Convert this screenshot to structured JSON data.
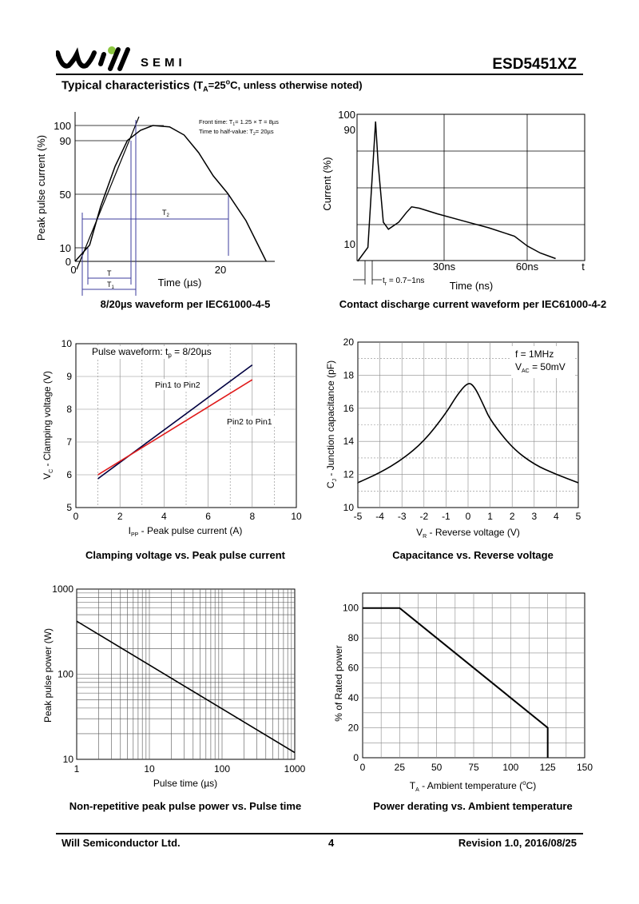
{
  "header": {
    "logo_text": "SEMI",
    "part_number": "ESD5451XZ",
    "section_title": "Typical characteristics",
    "section_condition_pre": "(T",
    "section_condition_sub": "A",
    "section_condition_post": "=25",
    "section_condition_sup": "o",
    "section_condition_end": "C, unless otherwise noted)"
  },
  "charts": {
    "waveform_8_20": {
      "caption": "8/20µs waveform per IEC61000-4-5",
      "ylabel": "Peak pulse current (%)",
      "xlabel": "Time (µs)",
      "yticks": [
        "100",
        "90",
        "50",
        "10",
        "0"
      ],
      "xticks": [
        "0",
        "20"
      ],
      "note1_pre": "Front time: T",
      "note1_sub": "1",
      "note1_post": "= 1.25 × T = 8µs",
      "note2_pre": "Time to half-value: T",
      "note2_sub": "2",
      "note2_post": "= 20µs",
      "label_T": "T",
      "label_T1": "T",
      "label_T1_sub": "1",
      "label_T2": "T",
      "label_T2_sub": "2"
    },
    "contact_discharge": {
      "caption": "Contact discharge current waveform per IEC61000-4-2",
      "ylabel": "Current (%)",
      "xlabel": "Time (ns)",
      "yticks": [
        "100",
        "90",
        "10"
      ],
      "xticks": [
        "30ns",
        "60ns",
        "t"
      ],
      "tr_pre": "t",
      "tr_sub": "r",
      "tr_post": " = 0.7~1ns"
    },
    "clamping": {
      "caption": "Clamping voltage vs. Peak pulse current",
      "legend_title_pre": "Pulse waveform: t",
      "legend_title_sub": "p",
      "legend_title_post": " = 8/20µs",
      "ylabel_pre": "V",
      "ylabel_sub": "C",
      "ylabel_post": " - Clamping voltage (V)",
      "xlabel_pre": "I",
      "xlabel_sub": "PP",
      "xlabel_post": " - Peak pulse current (A)",
      "colors": {
        "pin1_to_pin2": "#000040",
        "pin2_to_pin1": "#e01a1a"
      }
    },
    "capacitance": {
      "caption": "Capacitance vs. Reverse voltage",
      "legend_f": "f = 1MHz",
      "legend_v_pre": "V",
      "legend_v_sub": "AC",
      "legend_v_post": " = 50mV",
      "ylabel_pre": "C",
      "ylabel_sub": "J",
      "ylabel_post": " - Junction capacitance (pF)",
      "xlabel_pre": "V",
      "xlabel_sub": "R",
      "xlabel_post": " - Reverse voltage (V)"
    },
    "pulse_power": {
      "caption": "Non-repetitive peak pulse power vs. Pulse time",
      "ylabel": "Peak pulse power (W)",
      "xlabel": "Pulse time (µs)"
    },
    "derating": {
      "caption": "Power derating vs. Ambient temperature",
      "ylabel": "% of Rated power",
      "xlabel_pre": "T",
      "xlabel_sub": "A",
      "xlabel_post": " - Ambient temperature (",
      "xlabel_sup": "o",
      "xlabel_end": "C)"
    }
  },
  "chart_data": [
    {
      "type": "line",
      "title": "8/20µs waveform per IEC61000-4-5",
      "xlabel": "Time (µs)",
      "ylabel": "Peak pulse current (%)",
      "x_ticks": [
        0,
        20
      ],
      "y_ticks": [
        0,
        10,
        50,
        90,
        100
      ],
      "xlim": [
        -0.5,
        27
      ],
      "ylim": [
        -2,
        105
      ],
      "series": [
        {
          "values": [
            [
              0,
              0
            ],
            [
              2,
              12
            ],
            [
              3.5,
              40
            ],
            [
              5.5,
              70
            ],
            [
              7.2,
              89
            ],
            [
              9,
              96.5
            ],
            [
              10.7,
              100
            ],
            [
              13,
              99
            ],
            [
              15,
              93
            ],
            [
              17,
              80
            ],
            [
              19,
              63
            ],
            [
              21,
              50
            ],
            [
              23.5,
              30
            ],
            [
              26.3,
              0
            ]
          ]
        }
      ]
    },
    {
      "type": "line",
      "title": "Contact discharge current waveform per IEC61000-4-2",
      "xlabel": "Time (ns)",
      "ylabel": "Current (%)",
      "x_ticks": [
        30,
        60
      ],
      "y_ticks": [
        10,
        90,
        100
      ],
      "series": [
        {
          "values": [
            [
              -6,
              0
            ],
            [
              -2,
              10
            ],
            [
              0,
              70
            ],
            [
              1,
              100
            ],
            [
              2,
              70
            ],
            [
              4,
              28
            ],
            [
              6,
              23
            ],
            [
              10,
              28
            ],
            [
              13,
              35
            ],
            [
              15,
              39
            ],
            [
              18,
              38
            ],
            [
              25,
              34
            ],
            [
              35,
              29
            ],
            [
              45,
              24
            ],
            [
              55,
              18
            ],
            [
              60,
              11
            ],
            [
              65,
              6
            ],
            [
              71,
              2
            ]
          ]
        }
      ]
    },
    {
      "type": "line",
      "title": "Clamping voltage vs. Peak pulse current",
      "xlabel": "I_PP - Peak pulse current (A)",
      "ylabel": "V_C - Clamping voltage (V)",
      "xlim": [
        0,
        10
      ],
      "ylim": [
        5,
        10
      ],
      "series": [
        {
          "name": "Pin1 to Pin2",
          "values": [
            [
              1,
              5.88
            ],
            [
              8,
              9.35
            ]
          ]
        },
        {
          "name": "Pin2 to Pin1",
          "values": [
            [
              1,
              6.0
            ],
            [
              8,
              8.9
            ]
          ]
        }
      ]
    },
    {
      "type": "line",
      "title": "Capacitance vs. Reverse voltage",
      "xlabel": "V_R - Reverse voltage (V)",
      "ylabel": "C_J - Junction capacitance (pF)",
      "xlim": [
        -5,
        5
      ],
      "ylim": [
        10,
        20
      ],
      "series": [
        {
          "values": [
            [
              -5,
              11.5
            ],
            [
              -4,
              12.1
            ],
            [
              -3,
              12.9
            ],
            [
              -2,
              14.0
            ],
            [
              -1,
              15.7
            ],
            [
              -0.5,
              16.8
            ],
            [
              0,
              17.6
            ],
            [
              0.3,
              17.3
            ],
            [
              0.7,
              16.2
            ],
            [
              1,
              15.3
            ],
            [
              2,
              13.6
            ],
            [
              3,
              12.6
            ],
            [
              4,
              12.0
            ],
            [
              5,
              11.5
            ]
          ]
        }
      ]
    },
    {
      "type": "line",
      "title": "Non-repetitive peak pulse power vs. Pulse time",
      "xlabel": "Pulse time (µs)",
      "ylabel": "Peak pulse power (W)",
      "log_x": true,
      "log_y": true,
      "xlim": [
        1,
        1000
      ],
      "ylim": [
        10,
        1000
      ],
      "x_ticks": [
        1,
        10,
        100,
        1000
      ],
      "y_ticks": [
        10,
        100,
        1000
      ],
      "series": [
        {
          "values": [
            [
              1,
              420
            ],
            [
              1000,
              12
            ]
          ]
        }
      ]
    },
    {
      "type": "line",
      "title": "Power derating vs. Ambient temperature",
      "xlabel": "T_A - Ambient temperature (°C)",
      "ylabel": "% of Rated power",
      "xlim": [
        0,
        150
      ],
      "ylim": [
        0,
        110
      ],
      "x_ticks": [
        0,
        25,
        50,
        75,
        100,
        125,
        150
      ],
      "y_ticks": [
        0,
        20,
        40,
        60,
        80,
        100
      ],
      "series": [
        {
          "values": [
            [
              0,
              100
            ],
            [
              25,
              100
            ],
            [
              125,
              20
            ],
            [
              125,
              0
            ]
          ]
        }
      ]
    }
  ],
  "footer": {
    "company": "Will Semiconductor Ltd.",
    "page": "4",
    "revision": "Revision 1.0, 2016/08/25"
  }
}
